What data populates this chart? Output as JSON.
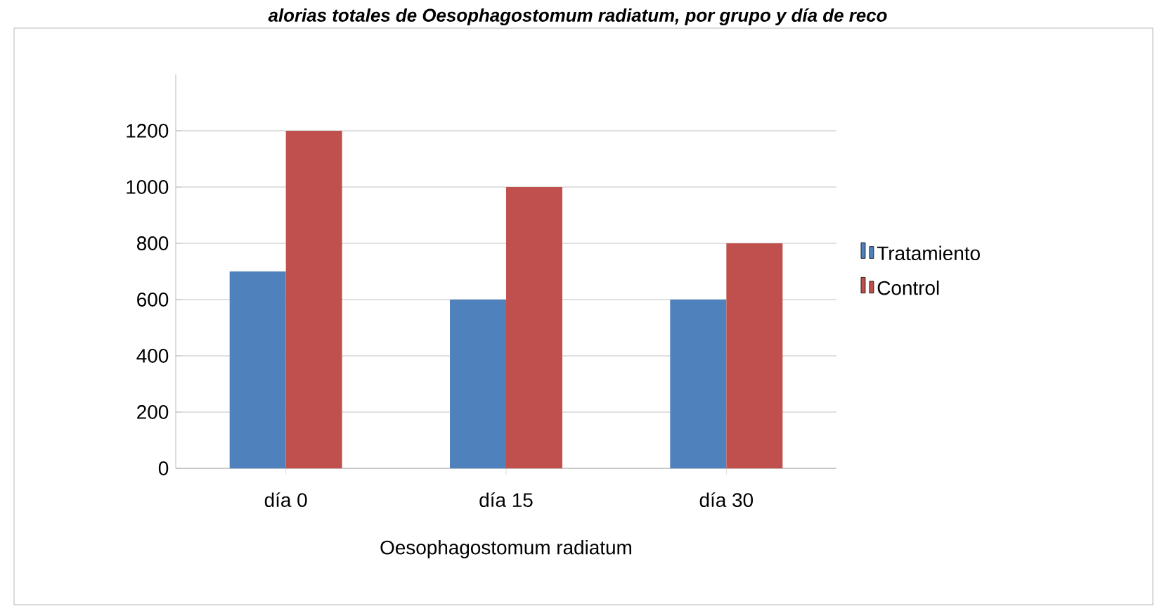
{
  "chart_data": {
    "type": "bar",
    "title": "alorias totales de Oesophagostomum radiatum, por grupo y día de reco",
    "categories": [
      "día 0",
      "día 15",
      "día 30"
    ],
    "xlabel": "Oesophagostomum radiatum",
    "series": [
      {
        "name": "Tratamiento",
        "color": "#4f81bd",
        "values": [
          700,
          600,
          600
        ]
      },
      {
        "name": "Control",
        "color": "#c0504d",
        "values": [
          1200,
          1000,
          800
        ]
      }
    ],
    "ylim": [
      0,
      1400
    ],
    "yticks": [
      0,
      200,
      400,
      600,
      800,
      1000,
      1200
    ],
    "grid": "y",
    "legend": "right"
  }
}
